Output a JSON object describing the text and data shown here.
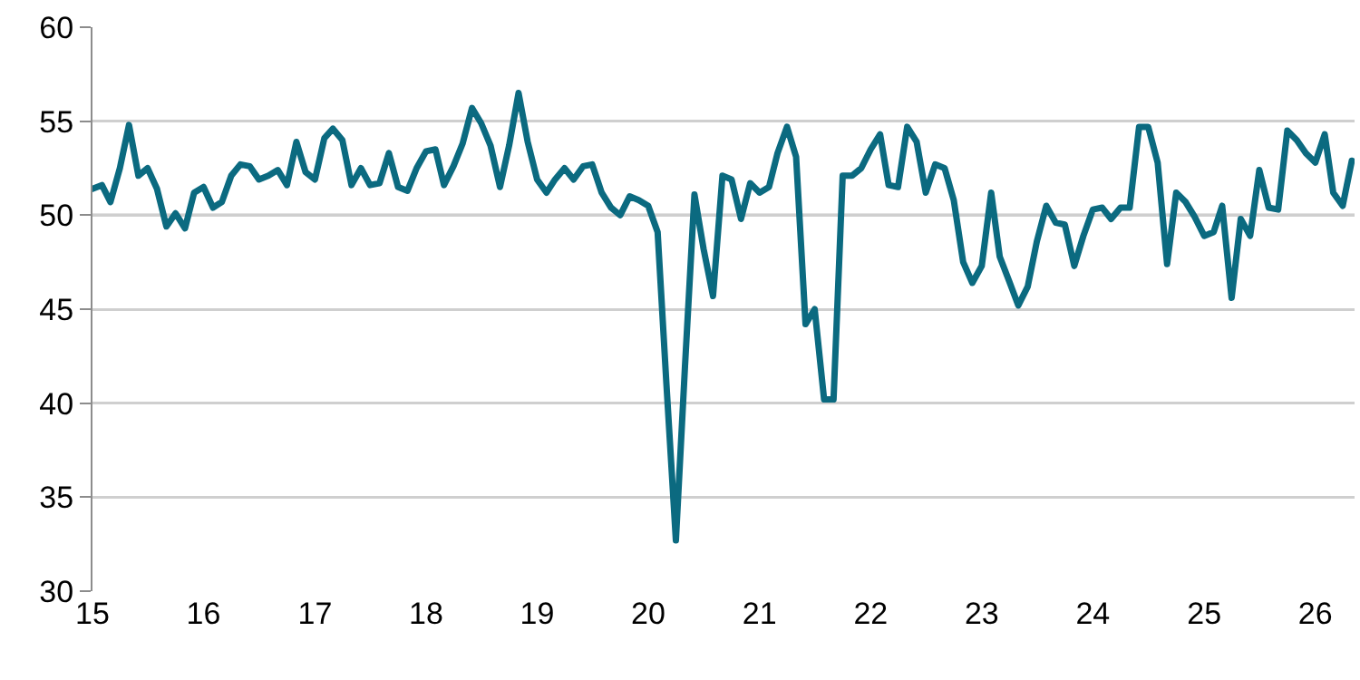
{
  "chart_data": {
    "type": "line",
    "x": [
      "2015-01",
      "2015-02",
      "2015-03",
      "2015-04",
      "2015-05",
      "2015-06",
      "2015-07",
      "2015-08",
      "2015-09",
      "2015-10",
      "2015-11",
      "2015-12",
      "2016-01",
      "2016-02",
      "2016-03",
      "2016-04",
      "2016-05",
      "2016-06",
      "2016-07",
      "2016-08",
      "2016-09",
      "2016-10",
      "2016-11",
      "2016-12",
      "2017-01",
      "2017-02",
      "2017-03",
      "2017-04",
      "2017-05",
      "2017-06",
      "2017-07",
      "2017-08",
      "2017-09",
      "2017-10",
      "2017-11",
      "2017-12",
      "2018-01",
      "2018-02",
      "2018-03",
      "2018-04",
      "2018-05",
      "2018-06",
      "2018-07",
      "2018-08",
      "2018-09",
      "2018-10",
      "2018-11",
      "2018-12",
      "2019-01",
      "2019-02",
      "2019-03",
      "2019-04",
      "2019-05",
      "2019-06",
      "2019-07",
      "2019-08",
      "2019-09",
      "2019-10",
      "2019-11",
      "2019-12",
      "2020-01",
      "2020-02",
      "2020-03",
      "2020-04",
      "2020-05",
      "2020-06",
      "2020-07",
      "2020-08",
      "2020-09",
      "2020-10",
      "2020-11",
      "2020-12",
      "2021-01",
      "2021-02",
      "2021-03",
      "2021-04",
      "2021-05",
      "2021-06",
      "2021-07",
      "2021-08",
      "2021-09",
      "2021-10",
      "2021-11",
      "2021-12",
      "2022-01",
      "2022-02",
      "2022-03",
      "2022-04",
      "2022-05",
      "2022-06",
      "2022-07",
      "2022-08",
      "2022-09",
      "2022-10",
      "2022-11",
      "2022-12",
      "2023-01",
      "2023-02",
      "2023-03",
      "2023-04",
      "2023-05",
      "2023-06",
      "2023-07",
      "2023-08",
      "2023-09",
      "2023-10",
      "2023-11",
      "2023-12",
      "2024-01",
      "2024-02",
      "2024-03",
      "2024-04",
      "2024-05",
      "2024-06",
      "2024-07",
      "2024-08",
      "2024-09",
      "2024-10",
      "2024-11",
      "2024-12",
      "2025-01",
      "2025-02",
      "2025-03",
      "2025-04",
      "2025-05",
      "2025-06",
      "2025-07",
      "2025-08",
      "2025-09",
      "2025-10",
      "2025-11",
      "2025-12",
      "2026-01",
      "2026-02",
      "2026-03",
      "2026-04",
      "2026-05"
    ],
    "series": [
      {
        "color": "#0b6a80",
        "values": [
          51.4,
          51.6,
          50.7,
          52.5,
          54.8,
          52.1,
          52.5,
          51.4,
          49.4,
          50.1,
          49.3,
          51.2,
          51.5,
          50.4,
          50.7,
          52.1,
          52.7,
          52.6,
          51.9,
          52.1,
          52.4,
          51.6,
          53.9,
          52.3,
          51.9,
          54.1,
          54.6,
          54.0,
          51.6,
          52.5,
          51.6,
          51.7,
          53.3,
          51.5,
          51.3,
          52.5,
          53.4,
          53.5,
          51.6,
          52.6,
          53.8,
          55.7,
          54.9,
          53.7,
          51.5,
          53.7,
          56.5,
          53.9,
          51.9,
          51.2,
          51.9,
          52.5,
          51.9,
          52.6,
          52.7,
          51.2,
          50.4,
          50.0,
          51.0,
          50.8,
          50.5,
          49.1,
          41,
          32.7,
          42,
          51.1,
          48.2,
          45.7,
          52.1,
          51.9,
          49.8,
          51.7,
          51.2,
          51.5,
          53.3,
          54.7,
          53.1,
          44.2,
          45.0,
          40.2,
          40.2,
          52.1,
          52.1,
          52.5,
          53.5,
          54.3,
          51.6,
          51.5,
          54.7,
          53.9,
          51.2,
          52.7,
          52.5,
          50.8,
          47.5,
          46.4,
          47.3,
          51.2,
          47.8,
          46.5,
          45.2,
          46.2,
          48.6,
          50.5,
          49.6,
          49.5,
          47.3,
          48.9,
          50.3,
          50.4,
          49.8,
          50.4,
          50.4,
          54.7,
          54.7,
          52.8,
          47.4,
          51.2,
          50.7,
          49.9,
          48.9,
          49.1,
          50.5,
          45.6,
          49.8,
          48.9,
          52.4,
          50.4,
          50.3,
          54.5,
          54.0,
          53.3,
          52.8,
          54.3,
          51.2,
          50.5,
          52.9
        ]
      }
    ],
    "xlim": [
      "2015-01",
      "2026-05-10"
    ],
    "xticks": [
      {
        "value": "2015-01",
        "label": "15"
      },
      {
        "value": "2016-01",
        "label": "16"
      },
      {
        "value": "2017-01",
        "label": "17"
      },
      {
        "value": "2018-01",
        "label": "18"
      },
      {
        "value": "2019-01",
        "label": "19"
      },
      {
        "value": "2020-01",
        "label": "20"
      },
      {
        "value": "2021-01",
        "label": "21"
      },
      {
        "value": "2022-01",
        "label": "22"
      },
      {
        "value": "2023-01",
        "label": "23"
      },
      {
        "value": "2024-01",
        "label": "24"
      },
      {
        "value": "2025-01",
        "label": "25"
      },
      {
        "value": "2026-01",
        "label": "26"
      }
    ],
    "ylim": [
      30,
      60
    ],
    "yticks": [
      30,
      35,
      40,
      45,
      50,
      55,
      60
    ],
    "grid": "y",
    "marker": "none",
    "line_style": "solid",
    "ref_lines": [
      {
        "axis": "y",
        "value": 50,
        "color": "#8c8c8c"
      }
    ]
  }
}
